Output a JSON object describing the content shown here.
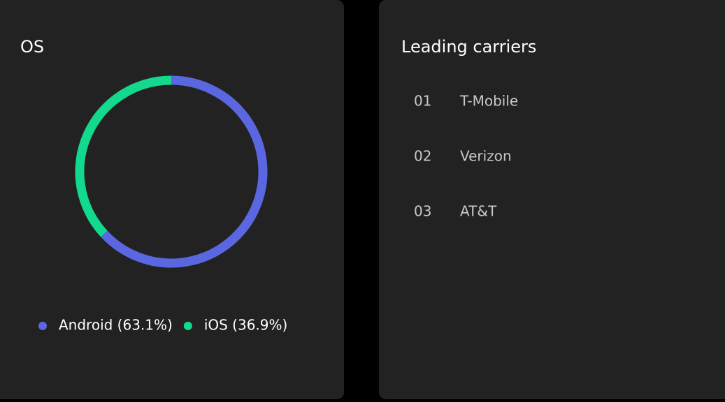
{
  "chart_data": {
    "type": "pie",
    "donut": true,
    "title": "OS",
    "categories": [
      "Android (63.1%)",
      "iOS (36.9%)"
    ],
    "values": [
      63.1,
      36.9
    ],
    "colors": [
      "#5b67e0",
      "#13d98f"
    ]
  },
  "carriers": {
    "title": "Leading carriers",
    "items": [
      {
        "rank": "01",
        "name": "T-Mobile"
      },
      {
        "rank": "02",
        "name": "Verizon"
      },
      {
        "rank": "03",
        "name": "AT&T"
      }
    ]
  }
}
